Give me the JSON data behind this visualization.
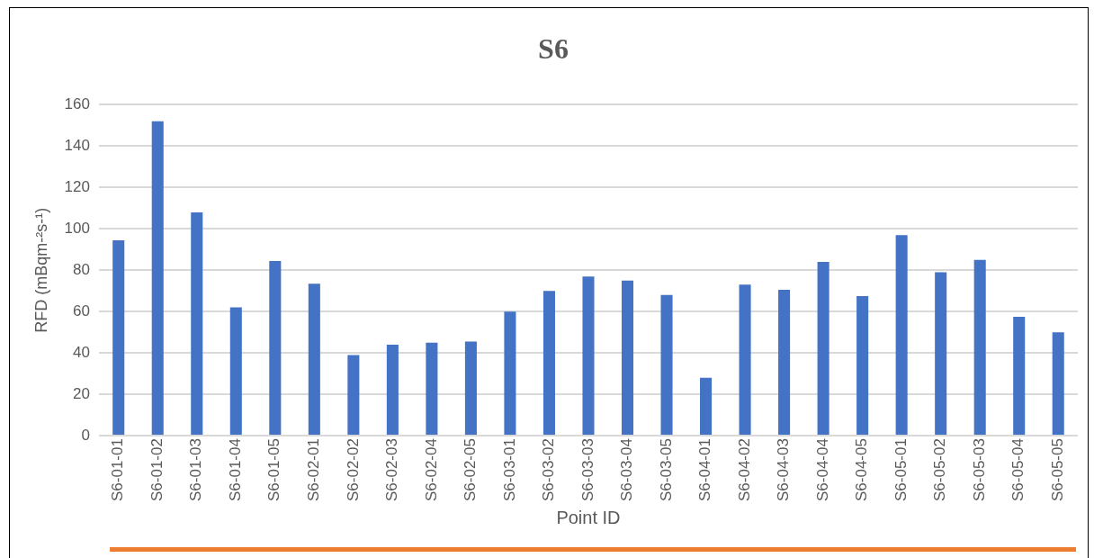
{
  "chart_data": {
    "type": "bar",
    "title": "S6",
    "xlabel": "Point ID",
    "ylabel": "RFD (mBqm-²s-¹)",
    "categories": [
      "S6-01-01",
      "S6-01-02",
      "S6-01-03",
      "S6-01-04",
      "S6-01-05",
      "S6-02-01",
      "S6-02-02",
      "S6-02-03",
      "S6-02-04",
      "S6-02-05",
      "S6-03-01",
      "S6-03-02",
      "S6-03-03",
      "S6-03-04",
      "S6-03-05",
      "S6-04-01",
      "S6-04-02",
      "S6-04-03",
      "S6-04-04",
      "S6-04-05",
      "S6-05-01",
      "S6-05-02",
      "S6-05-03",
      "S6-05-04",
      "S6-05-05"
    ],
    "values": [
      94.5,
      152,
      108,
      62,
      84.5,
      73.5,
      39,
      44,
      45,
      45.5,
      60,
      70,
      77,
      75,
      68,
      28,
      73,
      70.5,
      84,
      67.5,
      97,
      79,
      85,
      57.5,
      50
    ],
    "color": "#4472c4",
    "ylim": [
      0,
      160
    ],
    "yticks": [
      0,
      20,
      40,
      60,
      80,
      100,
      120,
      140,
      160
    ],
    "grid": "y"
  }
}
